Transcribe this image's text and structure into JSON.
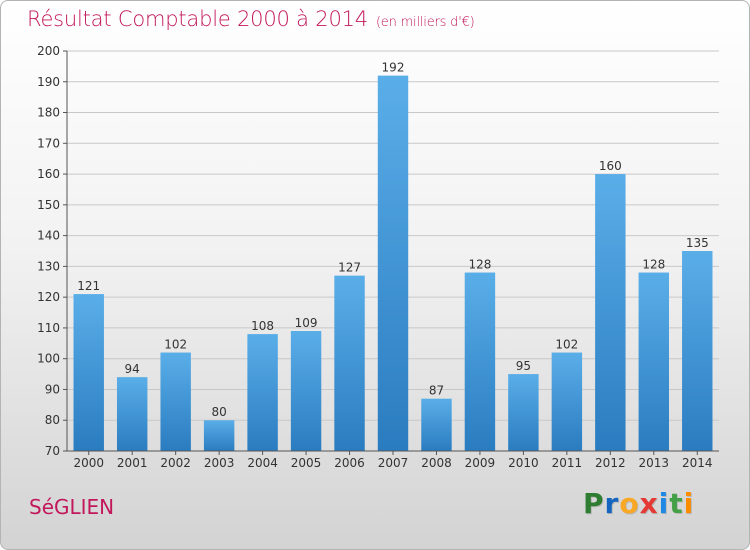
{
  "header": {
    "title": "Résultat Comptable 2000 à 2014",
    "subtitle": "(en milliers d'€)"
  },
  "footer": {
    "commune": "SéGLIEN",
    "logo_letters": [
      {
        "char": "P",
        "color": "#2e7d32"
      },
      {
        "char": "r",
        "color": "#1565c0"
      },
      {
        "char": "o",
        "color": "#f9a825"
      },
      {
        "char": "x",
        "color": "#e53935"
      },
      {
        "char": "i",
        "color": "#1e88e5"
      },
      {
        "char": "t",
        "color": "#43a047"
      },
      {
        "char": "i",
        "color": "#fb8c00"
      }
    ]
  },
  "colors": {
    "bar_top": "#5aaee8",
    "bar_bottom": "#2a7cc0",
    "grid": "#c8c8c8",
    "axis": "#555555",
    "text": "#333333"
  },
  "chart_data": {
    "type": "bar",
    "categories": [
      "2000",
      "2001",
      "2002",
      "2003",
      "2004",
      "2005",
      "2006",
      "2007",
      "2008",
      "2009",
      "2010",
      "2011",
      "2012",
      "2013",
      "2014"
    ],
    "values": [
      121,
      94,
      102,
      80,
      108,
      109,
      127,
      192,
      87,
      128,
      95,
      102,
      160,
      128,
      135
    ],
    "ylim": [
      70,
      200
    ],
    "ytick_step": 10,
    "grid": true
  }
}
